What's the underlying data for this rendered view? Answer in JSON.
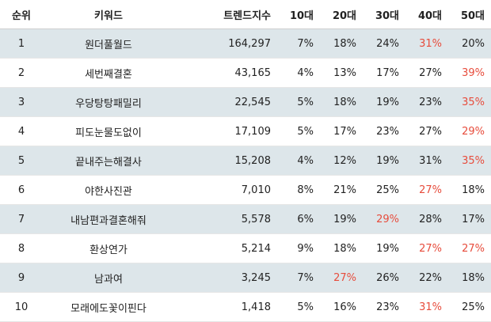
{
  "table": {
    "headers": [
      "순위",
      "키워드",
      "트렌드지수",
      "10대",
      "20대",
      "30대",
      "40대",
      "50대"
    ],
    "highlight_color": "#e74c3c",
    "row_stripe_color": "#dde6ea",
    "rows": [
      {
        "rank": "1",
        "keyword": "원더풀월드",
        "index": "164,297",
        "ages": [
          "7%",
          "18%",
          "24%",
          "31%",
          "20%"
        ],
        "max_age": 3
      },
      {
        "rank": "2",
        "keyword": "세번째결혼",
        "index": "43,165",
        "ages": [
          "4%",
          "13%",
          "17%",
          "27%",
          "39%"
        ],
        "max_age": 4
      },
      {
        "rank": "3",
        "keyword": "우당탕탕패밀리",
        "index": "22,545",
        "ages": [
          "5%",
          "18%",
          "19%",
          "23%",
          "35%"
        ],
        "max_age": 4
      },
      {
        "rank": "4",
        "keyword": "피도눈물도없이",
        "index": "17,109",
        "ages": [
          "5%",
          "17%",
          "23%",
          "27%",
          "29%"
        ],
        "max_age": 4
      },
      {
        "rank": "5",
        "keyword": "끝내주는해결사",
        "index": "15,208",
        "ages": [
          "4%",
          "12%",
          "19%",
          "31%",
          "35%"
        ],
        "max_age": 4
      },
      {
        "rank": "6",
        "keyword": "야한사진관",
        "index": "7,010",
        "ages": [
          "8%",
          "21%",
          "25%",
          "27%",
          "18%"
        ],
        "max_age": 3
      },
      {
        "rank": "7",
        "keyword": "내남편과결혼해줘",
        "index": "5,578",
        "ages": [
          "6%",
          "19%",
          "29%",
          "28%",
          "17%"
        ],
        "max_age": 2
      },
      {
        "rank": "8",
        "keyword": "환상연가",
        "index": "5,214",
        "ages": [
          "9%",
          "18%",
          "19%",
          "27%",
          "27%"
        ],
        "max_age": [
          3,
          4
        ]
      },
      {
        "rank": "9",
        "keyword": "남과여",
        "index": "3,245",
        "ages": [
          "7%",
          "27%",
          "26%",
          "22%",
          "18%"
        ],
        "max_age": 1
      },
      {
        "rank": "10",
        "keyword": "모래에도꽃이핀다",
        "index": "1,418",
        "ages": [
          "5%",
          "16%",
          "23%",
          "31%",
          "25%"
        ],
        "max_age": 3
      }
    ]
  }
}
